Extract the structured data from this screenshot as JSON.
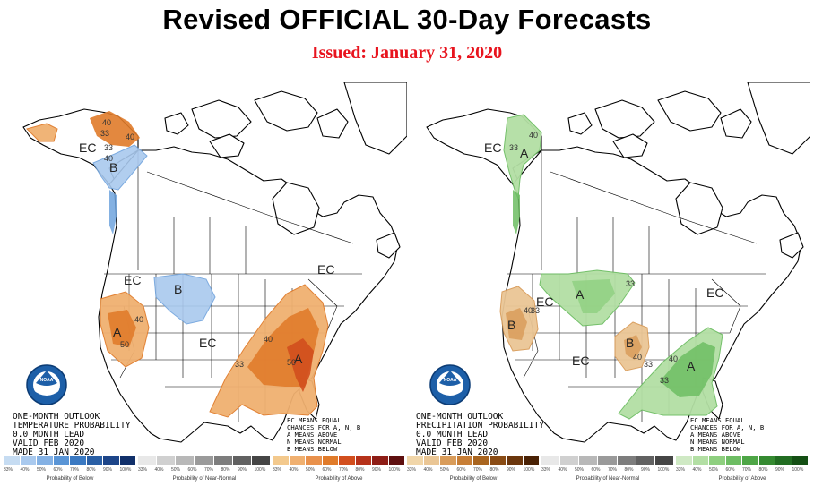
{
  "title": "Revised OFFICIAL 30-Day Forecasts",
  "issued": "Issued: January 31, 2020",
  "colors": {
    "issued": "#e8141e",
    "above_temp": "#e07b2a",
    "above_temp_light": "#f0b070",
    "above_temp_dark": "#d24e1d",
    "below_temp": "#6fa3dd",
    "below_temp_light": "#a9c9ee",
    "above_precip": "#6dbd63",
    "above_precip_light": "#b3dfa4",
    "below_precip": "#d99c5a",
    "below_precip_light": "#eac695",
    "noaa_blue": "#1d5fa8"
  },
  "temperature_map": {
    "info": [
      "ONE-MONTH OUTLOOK",
      "TEMPERATURE PROBABILITY",
      "0.0 MONTH LEAD",
      "VALID FEB 2020",
      "MADE 31 JAN 2020"
    ],
    "key": [
      "EC MEANS EQUAL",
      "CHANCES FOR A, N, B",
      "A MEANS ABOVE",
      "N MEANS NORMAL",
      "B MEANS BELOW"
    ],
    "region_labels": {
      "ec_alaska": "EC",
      "b_alaska": "B",
      "ec_west": "EC",
      "b_plains": "B",
      "a_california": "A",
      "ec_central": "EC",
      "a_southeast": "A",
      "ec_northeast": "EC"
    },
    "contour_labels": {
      "ak_40a": "40",
      "ak_33a": "33",
      "ak_40b": "40",
      "ak_33b": "33",
      "ak_40c": "40",
      "ca_40": "40",
      "ca_50": "50",
      "se_40": "40",
      "se_50": "50",
      "se_33": "33"
    },
    "noaa_logo_text": "NOAA"
  },
  "precipitation_map": {
    "info": [
      "ONE-MONTH OUTLOOK",
      "PRECIPITATION PROBABILITY",
      "0.0 MONTH LEAD",
      "VALID FEB 2020",
      "MADE 31 JAN 2020"
    ],
    "key": [
      "EC MEANS EQUAL",
      "CHANCES FOR A, N, B",
      "A MEANS ABOVE",
      "N MEANS NORMAL",
      "B MEANS BELOW"
    ],
    "region_labels": {
      "ec_alaska": "EC",
      "a_alaska": "A",
      "ec_west": "EC",
      "b_california": "B",
      "a_plains": "A",
      "b_south": "B",
      "ec_central": "EC",
      "a_southeast": "A",
      "ec_northeast": "EC"
    },
    "contour_labels": {
      "ak_33": "33",
      "ak_40": "40",
      "ca_40": "40",
      "ca_33": "33",
      "pl_33": "33",
      "so_40": "40",
      "so_33": "33",
      "se_40": "40",
      "se_33": "33"
    },
    "noaa_logo_text": "NOAA"
  },
  "legends": [
    {
      "caption": "Probability of Below",
      "colors": [
        "#c6dcf2",
        "#a9c9ee",
        "#84b1e4",
        "#5a95d6",
        "#3a79c2",
        "#2a5fa5",
        "#1d4589",
        "#11306a"
      ],
      "ticks": [
        "33%",
        "40%",
        "50%",
        "60%",
        "70%",
        "80%",
        "90%",
        "100%"
      ]
    },
    {
      "caption": "Probability of Near-Normal",
      "colors": [
        "#e8e8e8",
        "#d0d0d0",
        "#b8b8b8",
        "#9a9a9a",
        "#7d7d7d",
        "#616161",
        "#454545"
      ],
      "ticks": [
        "33%",
        "40%",
        "50%",
        "60%",
        "70%",
        "80%",
        "90%",
        "100%"
      ]
    },
    {
      "caption": "Probability of Above",
      "colors": [
        "#f3c98d",
        "#f0b070",
        "#e9914c",
        "#e07b2a",
        "#d24e1d",
        "#b6321a",
        "#8e1d16",
        "#5e0f0f"
      ],
      "ticks": [
        "33%",
        "40%",
        "50%",
        "60%",
        "70%",
        "80%",
        "90%",
        "100%"
      ]
    },
    {
      "caption": "Probability of Below",
      "colors": [
        "#f1d6a9",
        "#eac695",
        "#d99c5a",
        "#c77e36",
        "#a9651f",
        "#8a4c15",
        "#6b360d",
        "#4a2205"
      ],
      "ticks": [
        "33%",
        "40%",
        "50%",
        "60%",
        "70%",
        "80%",
        "90%",
        "100%"
      ]
    },
    {
      "caption": "Probability of Near-Normal",
      "colors": [
        "#e8e8e8",
        "#d0d0d0",
        "#b8b8b8",
        "#9a9a9a",
        "#7d7d7d",
        "#616161",
        "#454545"
      ],
      "ticks": [
        "33%",
        "40%",
        "50%",
        "60%",
        "70%",
        "80%",
        "90%",
        "100%"
      ]
    },
    {
      "caption": "Probability of Above",
      "colors": [
        "#cfe9c4",
        "#b3dfa4",
        "#8ecf7f",
        "#6dbd63",
        "#4ea646",
        "#358a31",
        "#226d22",
        "#144f14"
      ],
      "ticks": [
        "33%",
        "40%",
        "50%",
        "60%",
        "70%",
        "80%",
        "90%",
        "100%"
      ]
    }
  ]
}
